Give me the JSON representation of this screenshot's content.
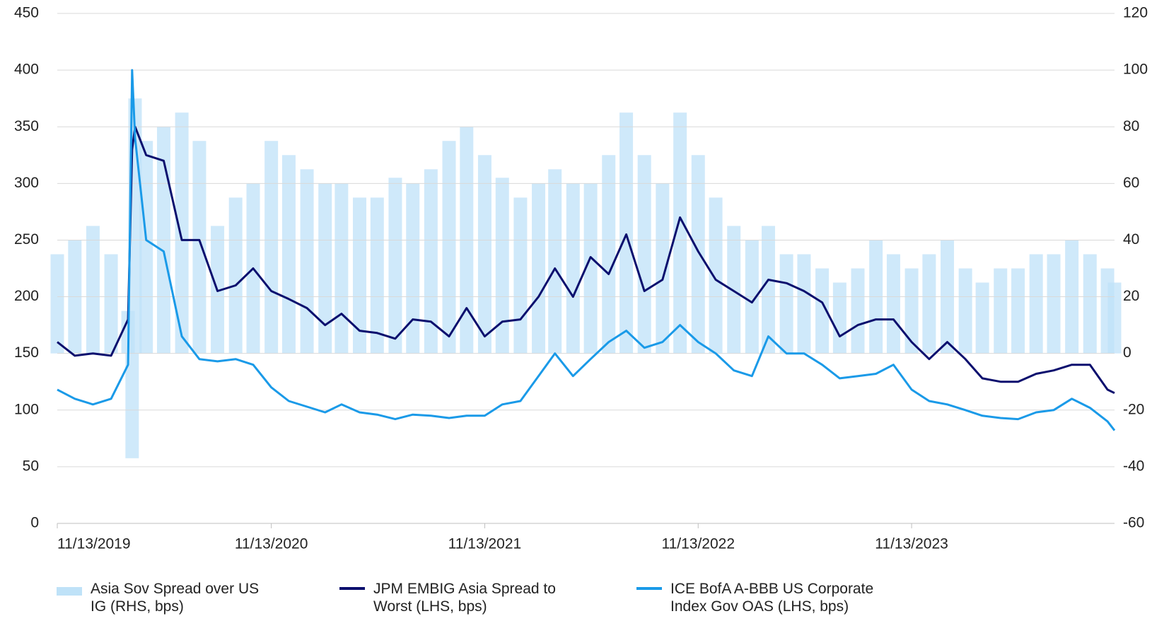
{
  "chart_data": {
    "type": "combo",
    "x": [
      "11/13/2019",
      "12/13/2019",
      "1/13/2020",
      "2/13/2020",
      "3/13/2020",
      "3/20/2020",
      "3/25/2020",
      "4/13/2020",
      "5/13/2020",
      "6/13/2020",
      "7/13/2020",
      "8/13/2020",
      "9/13/2020",
      "10/13/2020",
      "11/13/2020",
      "12/13/2020",
      "1/13/2021",
      "2/13/2021",
      "3/13/2021",
      "4/13/2021",
      "5/13/2021",
      "6/13/2021",
      "7/13/2021",
      "8/13/2021",
      "9/13/2021",
      "10/13/2021",
      "11/13/2021",
      "12/13/2021",
      "1/13/2022",
      "2/13/2022",
      "3/13/2022",
      "4/13/2022",
      "5/13/2022",
      "6/13/2022",
      "7/13/2022",
      "8/13/2022",
      "9/13/2022",
      "10/13/2022",
      "11/13/2022",
      "12/13/2022",
      "1/13/2023",
      "2/13/2023",
      "3/13/2023",
      "4/13/2023",
      "5/13/2023",
      "6/13/2023",
      "7/13/2023",
      "8/13/2023",
      "9/13/2023",
      "10/13/2023",
      "11/13/2023",
      "12/13/2023",
      "1/13/2024",
      "2/13/2024",
      "3/13/2024",
      "4/13/2024",
      "5/13/2024",
      "6/13/2024",
      "7/13/2024",
      "8/13/2024",
      "9/13/2024",
      "10/13/2024",
      "10/25/2024"
    ],
    "series": [
      {
        "name": "Asia Sov Spread over US IG (RHS, bps)",
        "type": "bar",
        "axis": "y2",
        "color": "#bfe2f8",
        "values": [
          35,
          40,
          45,
          35,
          15,
          -37,
          90,
          75,
          80,
          85,
          75,
          45,
          55,
          60,
          75,
          70,
          65,
          60,
          60,
          55,
          55,
          62,
          60,
          65,
          75,
          80,
          70,
          62,
          55,
          60,
          65,
          60,
          60,
          70,
          85,
          70,
          60,
          85,
          70,
          55,
          45,
          40,
          45,
          35,
          35,
          30,
          25,
          30,
          40,
          35,
          30,
          35,
          40,
          30,
          25,
          30,
          30,
          35,
          35,
          40,
          35,
          30,
          25
        ]
      },
      {
        "name": "JPM EMBIG Asia Spread to Worst (LHS, bps)",
        "type": "line",
        "color": "#0b0f6e",
        "values": [
          160,
          148,
          150,
          148,
          180,
          330,
          350,
          325,
          320,
          250,
          250,
          205,
          210,
          225,
          205,
          198,
          190,
          175,
          185,
          170,
          168,
          163,
          180,
          178,
          165,
          190,
          165,
          178,
          180,
          200,
          225,
          200,
          235,
          220,
          255,
          205,
          215,
          270,
          240,
          215,
          205,
          195,
          215,
          212,
          205,
          195,
          165,
          175,
          180,
          180,
          160,
          145,
          160,
          145,
          128,
          125,
          125,
          132,
          135,
          140,
          140,
          118,
          115
        ]
      },
      {
        "name": "ICE BofA A-BBB US Corporate Index Gov OAS (LHS, bps)",
        "type": "line",
        "color": "#1a9ae8",
        "values": [
          118,
          110,
          105,
          110,
          140,
          400,
          340,
          250,
          240,
          165,
          145,
          143,
          145,
          140,
          120,
          108,
          103,
          98,
          105,
          98,
          96,
          92,
          96,
          95,
          93,
          95,
          95,
          105,
          108,
          130,
          150,
          130,
          145,
          160,
          170,
          155,
          160,
          175,
          160,
          150,
          135,
          130,
          165,
          150,
          150,
          140,
          128,
          130,
          132,
          140,
          118,
          108,
          105,
          100,
          95,
          93,
          92,
          98,
          100,
          110,
          102,
          90,
          82
        ]
      }
    ],
    "xlim": [
      "11/13/2019",
      "10/25/2024"
    ],
    "xticks": [
      "11/13/2019",
      "11/13/2020",
      "11/13/2021",
      "11/13/2022",
      "11/13/2023"
    ],
    "ylim": [
      0,
      450
    ],
    "yticks": [
      0,
      50,
      100,
      150,
      200,
      250,
      300,
      350,
      400,
      450
    ],
    "y2lim": [
      -60,
      120
    ],
    "y2ticks": [
      -60,
      -40,
      -20,
      0,
      20,
      40,
      60,
      80,
      100,
      120
    ],
    "grid": true,
    "legend": "bottom"
  }
}
